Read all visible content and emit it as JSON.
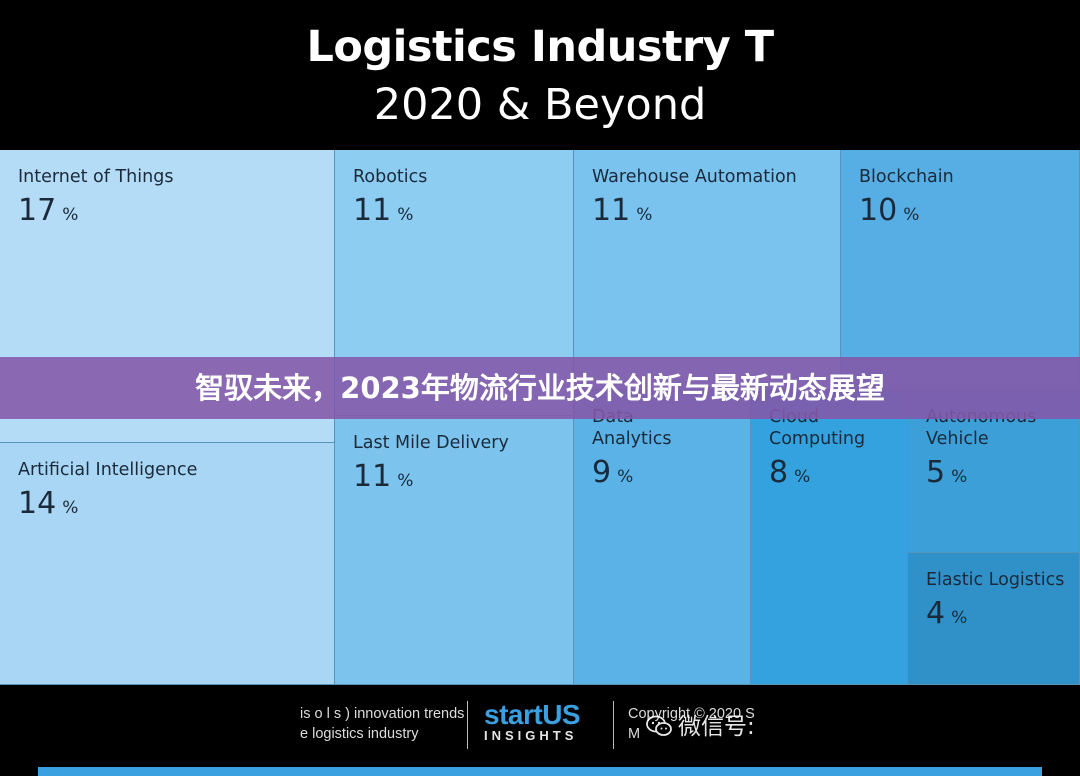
{
  "header": {
    "title_line1": "Logistics Industry T",
    "title_line2": "2020 & Beyond"
  },
  "overlay_banner": "智驭未来，2023年物流行业技术创新与最新动态展望",
  "chart_data": {
    "type": "treemap",
    "unit": "%",
    "items": [
      {
        "label": "Internet of Things",
        "value": 17,
        "color": "#b4dcf6"
      },
      {
        "label": "Artificial Intelligence",
        "value": 14,
        "color": "#a8d6f4"
      },
      {
        "label": "Robotics",
        "value": 11,
        "color": "#8ecdf2"
      },
      {
        "label": "Last Mile Delivery",
        "value": 11,
        "color": "#7cc4ee"
      },
      {
        "label": "Warehouse Automation",
        "value": 11,
        "color": "#7ac3ee"
      },
      {
        "label": "Blockchain",
        "value": 10,
        "color": "#56aee4"
      },
      {
        "label": "Data Analytics",
        "value": 9,
        "color": "#5ab2e6"
      },
      {
        "label": "Cloud Computing",
        "value": 8,
        "color": "#34a2de"
      },
      {
        "label": "Autonomous Vehicle",
        "value": 5,
        "color": "#3d9fd8"
      },
      {
        "label": "Elastic Logistics",
        "value": 4,
        "color": "#2f91c8"
      }
    ]
  },
  "footer": {
    "text_line1": "is        o   l     s      ) innovation trends",
    "text_line2": "          e logistics industry",
    "logo_main": "startUS",
    "logo_sub": "INSIGHTS",
    "copyright_line1": "Copyright © 2020 S",
    "copyright_line2": "M",
    "wechat_label": "微信号:"
  },
  "colors": {
    "background": "#000000",
    "banner": "#8458a8",
    "accent": "#3aa0e0"
  }
}
